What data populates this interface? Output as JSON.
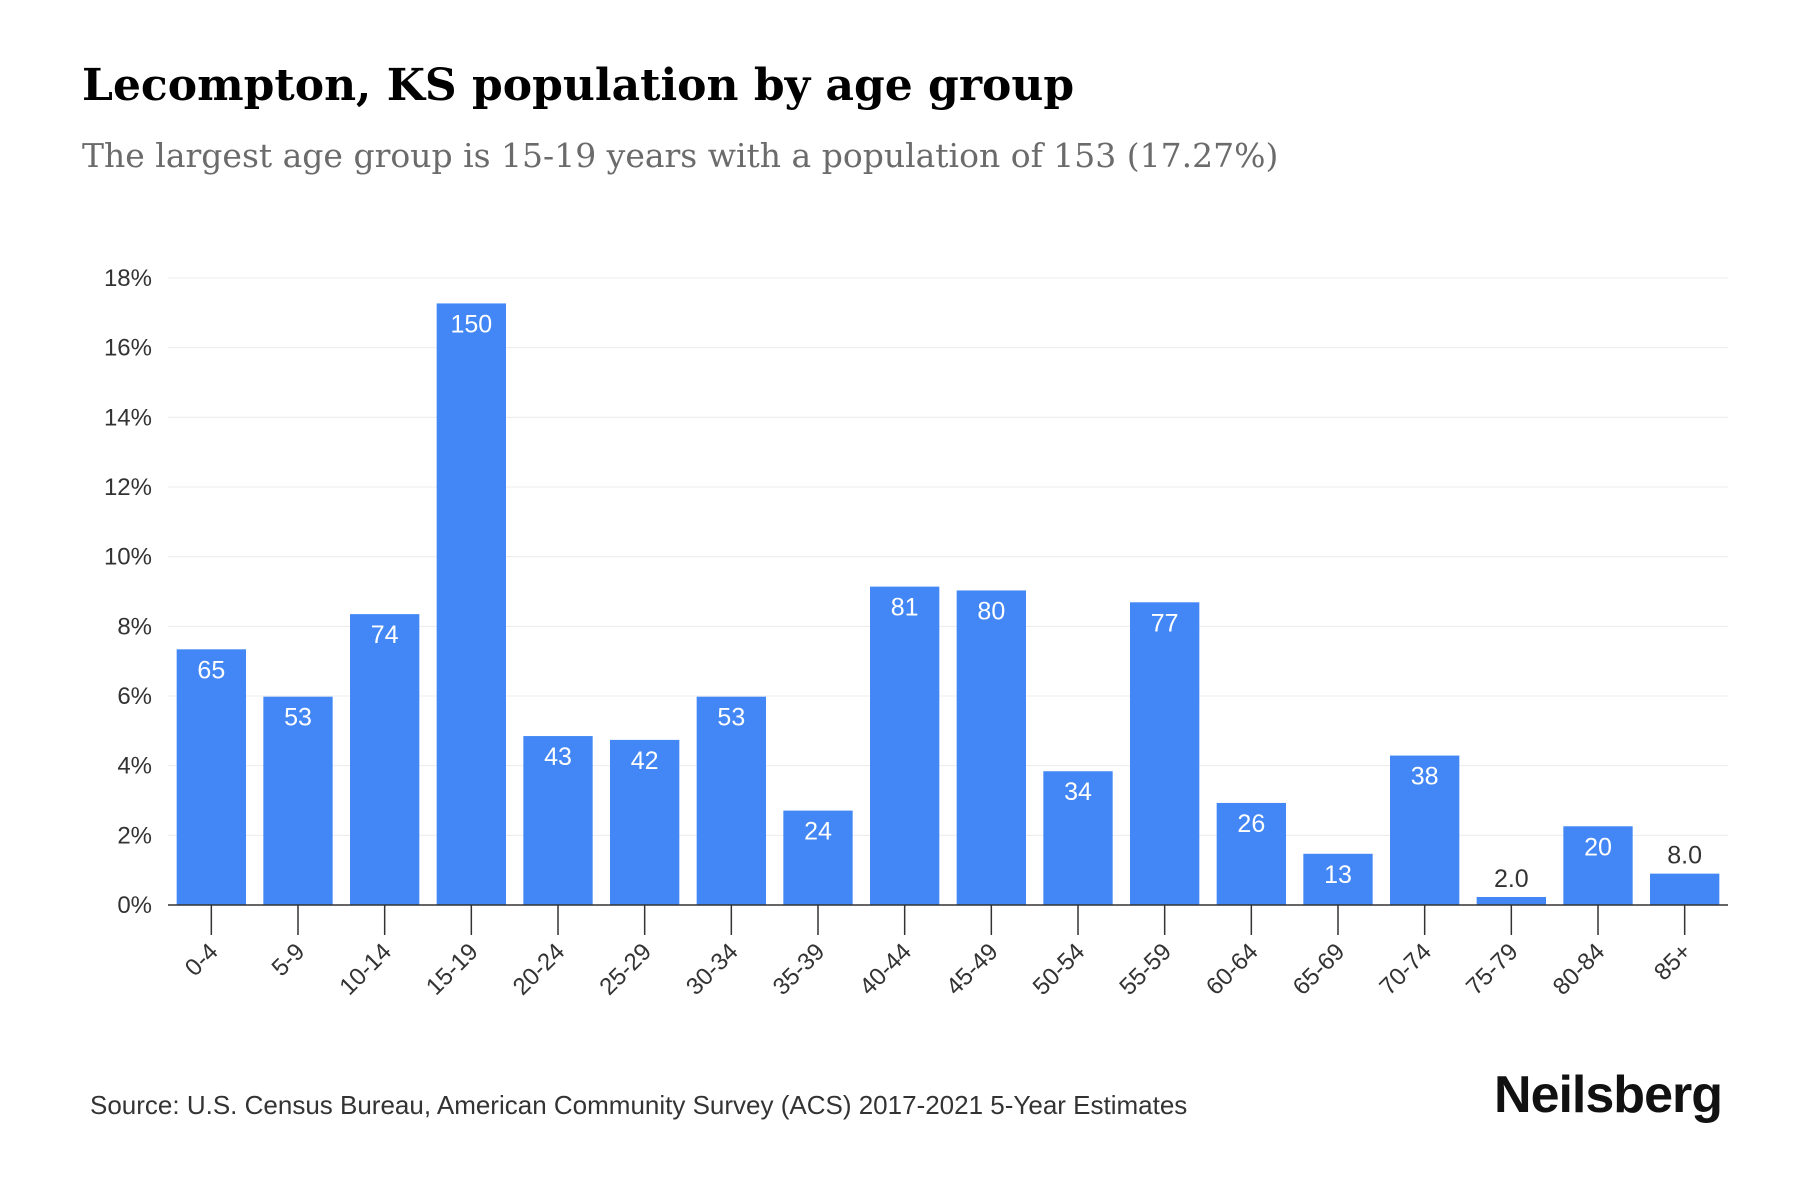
{
  "chart_data": {
    "type": "bar",
    "title": "Lecompton, KS population by age group",
    "subtitle": "The largest age group is 15-19 years with a population of 153 (17.27%)",
    "categories": [
      "0-4",
      "5-9",
      "10-14",
      "15-19",
      "20-24",
      "25-29",
      "30-34",
      "35-39",
      "40-44",
      "45-49",
      "50-54",
      "55-59",
      "60-64",
      "65-69",
      "70-74",
      "75-79",
      "80-84",
      "85+"
    ],
    "values": [
      7.34,
      5.98,
      8.35,
      17.27,
      4.85,
      4.74,
      5.98,
      2.71,
      9.14,
      9.03,
      3.84,
      8.69,
      2.93,
      1.47,
      4.29,
      0.23,
      2.26,
      0.9
    ],
    "data_labels": [
      "65",
      "53",
      "74",
      "150",
      "43",
      "42",
      "53",
      "24",
      "81",
      "80",
      "34",
      "77",
      "26",
      "13",
      "38",
      "2.0",
      "20",
      "8.0"
    ],
    "y_tick_labels": [
      "0%",
      "2%",
      "4%",
      "6%",
      "8%",
      "10%",
      "12%",
      "14%",
      "16%",
      "18%"
    ],
    "ylim": [
      0,
      18
    ],
    "xlabel": "",
    "ylabel": "",
    "grid": true,
    "bar_color": "#4287f5",
    "source": "Source: U.S. Census Bureau, American Community Survey (ACS) 2017-2021 5-Year Estimates",
    "brand": "Neilsberg"
  }
}
